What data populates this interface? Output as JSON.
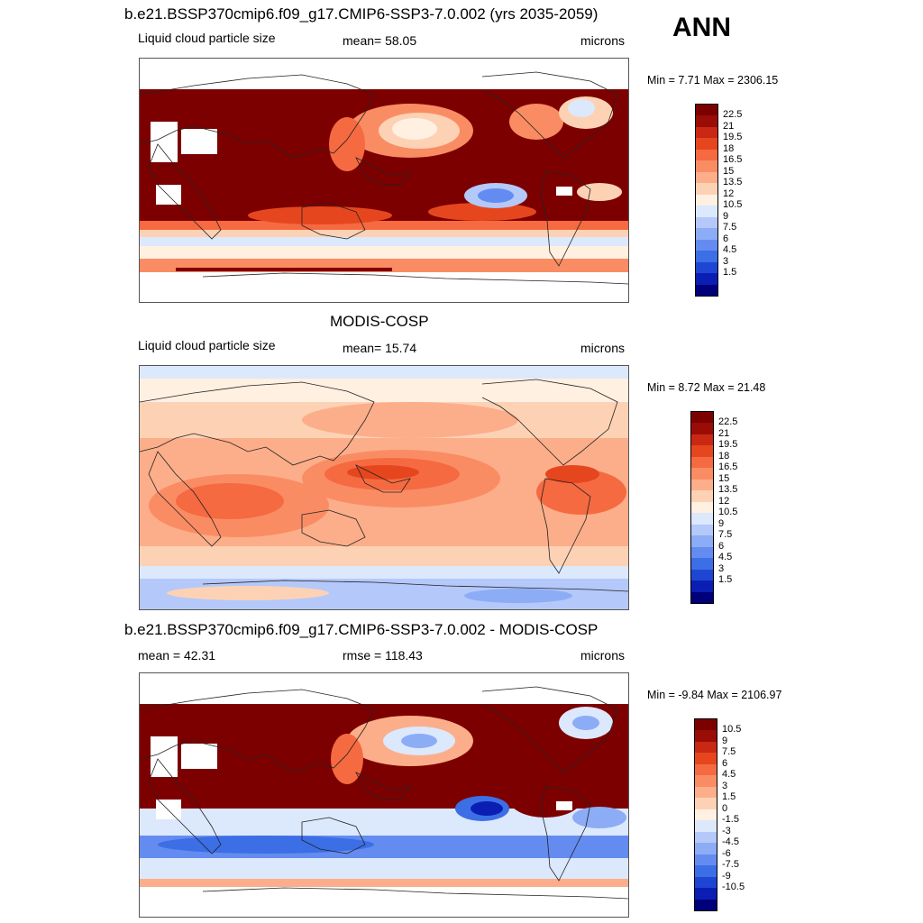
{
  "season": "ANN",
  "colors": {
    "abs_scale": [
      "#00007a",
      "#0a1eb4",
      "#1e46d2",
      "#3c6ee6",
      "#648cf0",
      "#8cacf5",
      "#b4c8fa",
      "#dce8fc",
      "#fff0e2",
      "#fdd2b4",
      "#fcae8a",
      "#fa8c64",
      "#f56a41",
      "#e6461e",
      "#c82814",
      "#9a0c06",
      "#7d0000"
    ],
    "diff_scale": [
      "#00007a",
      "#0a1eb4",
      "#1e46d2",
      "#3c6ee6",
      "#648cf0",
      "#8cacf5",
      "#b4c8fa",
      "#dce8fc",
      "#fff0e2",
      "#fdd2b4",
      "#fcae8a",
      "#fa8c64",
      "#f56a41",
      "#e6461e",
      "#c82814",
      "#9a0c06",
      "#7d0000"
    ],
    "land_outline": "#222222"
  },
  "abs_levels": [
    "22.5",
    "21",
    "19.5",
    "18",
    "16.5",
    "15",
    "13.5",
    "12",
    "10.5",
    "9",
    "7.5",
    "6",
    "4.5",
    "3",
    "1.5"
  ],
  "diff_levels": [
    "10.5",
    "9",
    "7.5",
    "6",
    "4.5",
    "3",
    "1.5",
    "0",
    "-1.5",
    "-3",
    "-4.5",
    "-6",
    "-7.5",
    "-9",
    "-10.5"
  ],
  "panels": [
    {
      "title": "b.e21.BSSP370cmip6.f09_g17.CMIP6-SSP3-7.0.002 (yrs 2035-2059)",
      "left": "Liquid cloud particle size",
      "center": "mean=  58.05",
      "right": "microns",
      "minmax": "Min =   7.71 Max = 2306.15"
    },
    {
      "title": "MODIS-COSP",
      "left": "Liquid cloud particle size",
      "center": "mean=  15.74",
      "right": "microns",
      "minmax": "Min =   8.72 Max =  21.48"
    },
    {
      "title": "b.e21.BSSP370cmip6.f09_g17.CMIP6-SSP3-7.0.002 - MODIS-COSP",
      "left": "mean =  42.31",
      "center": "rmse = 118.43",
      "right": "microns",
      "minmax": "Min =  -9.84 Max = 2106.97"
    }
  ]
}
